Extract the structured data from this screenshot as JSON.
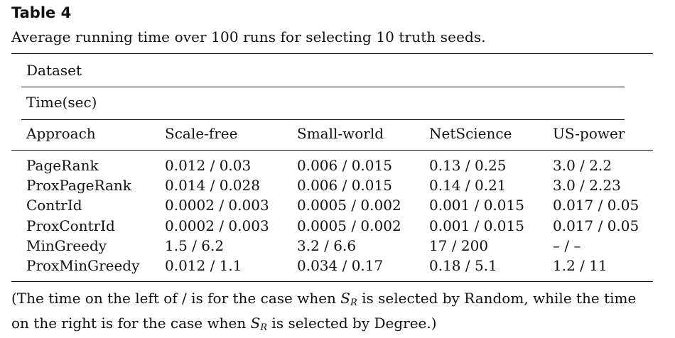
{
  "title": "Table 4",
  "caption": "Average running time over 100 runs for selecting 10 truth seeds.",
  "table": {
    "group_header": "Dataset",
    "unit_header": "Time(sec)",
    "columns": [
      "Approach",
      "Scale-free",
      "Small-world",
      "NetScience",
      "US-power"
    ],
    "rows": [
      [
        "PageRank",
        "0.012 / 0.03",
        "0.006 / 0.015",
        "0.13 / 0.25",
        "3.0 / 2.2"
      ],
      [
        "ProxPageRank",
        "0.014 / 0.028",
        "0.006 / 0.015",
        "0.14 / 0.21",
        "3.0 / 2.23"
      ],
      [
        "ContrId",
        "0.0002 / 0.003",
        "0.0005 / 0.002",
        "0.001 / 0.015",
        "0.017 / 0.05"
      ],
      [
        "ProxContrId",
        "0.0002 / 0.003",
        "0.0005 / 0.002",
        "0.001 / 0.015",
        "0.017 / 0.05"
      ],
      [
        "MinGreedy",
        "1.5 / 6.2",
        "3.2 / 6.6",
        "17 / 200",
        "– / –"
      ],
      [
        "ProxMinGreedy",
        "0.012 / 1.1",
        "0.034 / 0.17",
        "0.18 / 5.1",
        "1.2 / 11"
      ]
    ]
  },
  "footnote": {
    "part1": "(The time on the left of / is for the case when ",
    "var": "S",
    "sub": "R",
    "part2": " is selected by Random, while the time on the right is for the case when ",
    "part3": " is selected by Degree.)"
  }
}
